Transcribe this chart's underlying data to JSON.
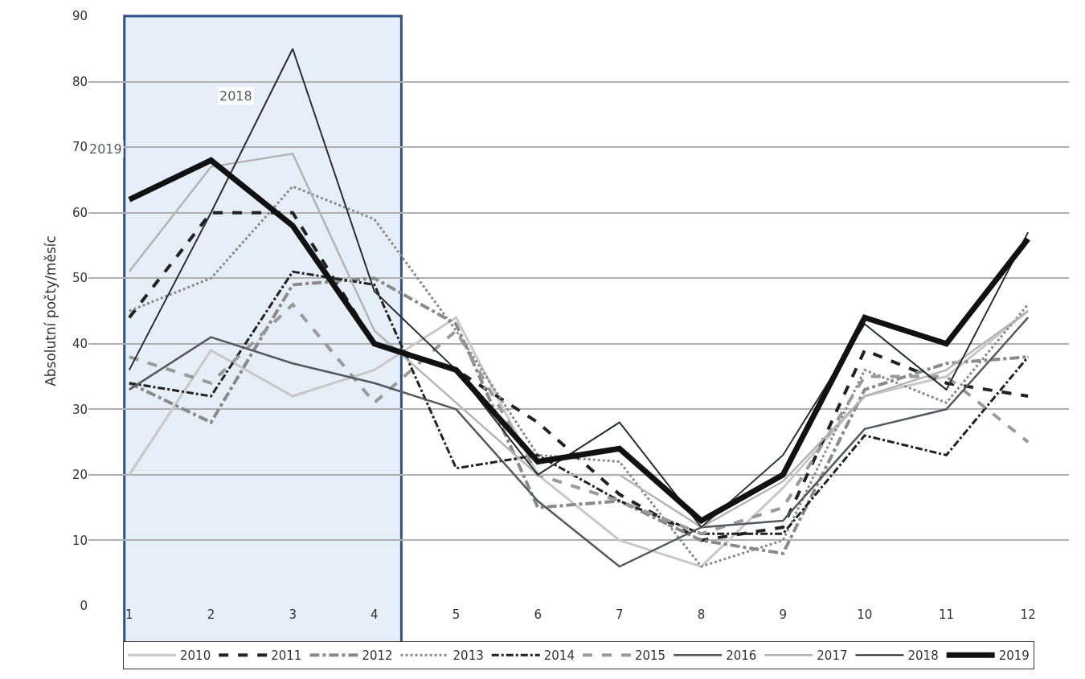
{
  "chart_data": {
    "type": "line",
    "ylabel": "Absolutní počty/měsíc",
    "x": [
      1,
      2,
      3,
      4,
      5,
      6,
      7,
      8,
      9,
      10,
      11,
      12
    ],
    "xlim": [
      0.5,
      12.5
    ],
    "xticks": [
      1,
      2,
      3,
      4,
      5,
      6,
      7,
      8,
      9,
      10,
      11,
      12
    ],
    "ylim": [
      0,
      90
    ],
    "yticks": [
      0,
      10,
      20,
      30,
      40,
      50,
      60,
      70,
      80,
      90
    ],
    "grid": "y",
    "legend": "bottom",
    "marker": "none",
    "bands": [
      {
        "axis": "x",
        "from": 0.94,
        "to": 4.33,
        "color": "#e6eef8"
      }
    ],
    "annotations": [
      "2018",
      "2019"
    ],
    "series": [
      {
        "name": "2010",
        "color": "#c8c8c8",
        "line_style": "solid",
        "values": [
          20,
          39,
          32,
          36,
          44,
          20,
          10,
          6,
          18,
          32,
          35,
          45
        ]
      },
      {
        "name": "2011",
        "color": "#222222",
        "line_style": "dashed",
        "values": [
          44,
          60,
          60,
          40,
          36,
          28,
          17,
          10,
          12,
          39,
          34,
          32
        ]
      },
      {
        "name": "2012",
        "color": "#8a8a8a",
        "line_style": "dashdot",
        "values": [
          34,
          28,
          49,
          50,
          43,
          15,
          16,
          10,
          8,
          33,
          37,
          38
        ]
      },
      {
        "name": "2013",
        "color": "#8a8a8a",
        "line_style": "dotted",
        "values": [
          45,
          50,
          64,
          59,
          42,
          23,
          22,
          6,
          10,
          36,
          31,
          46
        ]
      },
      {
        "name": "2014",
        "color": "#222222",
        "line_style": "dashdot",
        "values": [
          34,
          32,
          51,
          49,
          21,
          23,
          16,
          11,
          11,
          26,
          23,
          38
        ]
      },
      {
        "name": "2015",
        "color": "#9a9a9a",
        "line_style": "dashed",
        "values": [
          38,
          34,
          46,
          31,
          42,
          20,
          16,
          11,
          15,
          35,
          35,
          25
        ]
      },
      {
        "name": "2016",
        "color": "#555a60",
        "line_style": "solid",
        "values": [
          33,
          41,
          37,
          34,
          30,
          16,
          6,
          12,
          13,
          27,
          30,
          44
        ]
      },
      {
        "name": "2017",
        "color": "#b4b4b4",
        "line_style": "solid",
        "values": [
          51,
          67,
          69,
          42,
          31,
          20,
          20,
          12,
          19,
          32,
          36,
          45
        ]
      },
      {
        "name": "2018",
        "color": "#2a2e34",
        "line_style": "solid",
        "values": [
          36,
          60,
          85,
          48,
          36,
          20,
          28,
          12,
          23,
          43,
          33,
          57
        ]
      },
      {
        "name": "2019",
        "color": "#111111",
        "line_style": "solid",
        "values": [
          62,
          68,
          58,
          40,
          36,
          22,
          24,
          13,
          20,
          44,
          40,
          56
        ]
      }
    ]
  }
}
